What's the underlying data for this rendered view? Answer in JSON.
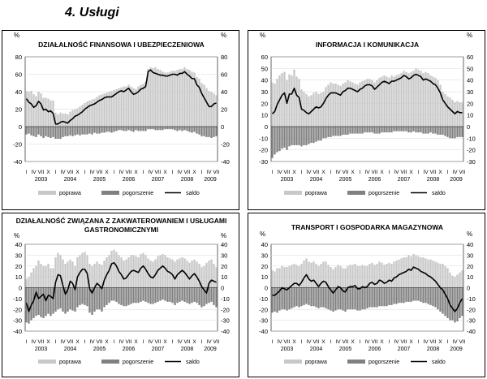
{
  "page": {
    "heading": "4.   Usługi"
  },
  "chart_data": [
    {
      "type": "bar+line",
      "title": "DZIAŁALNOŚĆ FINANSOWA I UBEZPIECZENIOWA",
      "unit": "%",
      "ylim": [
        -40,
        80
      ],
      "yticks": [
        -40,
        -20,
        0,
        20,
        40,
        60,
        80
      ],
      "months": [
        "I",
        "IV",
        "VII",
        "X"
      ],
      "years": [
        "2003",
        "2004",
        "2005",
        "2006",
        "2007",
        "2008",
        "2009"
      ],
      "legend": [
        "poprawa",
        "pogorszenie",
        "saldo"
      ],
      "colors": {
        "poprawa": "#c8c8c8",
        "pogorszenie": "#808080",
        "saldo": "#000000"
      },
      "series": [
        {
          "name": "poprawa",
          "values": [
            41,
            40,
            41,
            37,
            35,
            40,
            38,
            33,
            33,
            32,
            30,
            30,
            16,
            14,
            16,
            15,
            15,
            14,
            17,
            19,
            20,
            21,
            23,
            25,
            27,
            29,
            30,
            31,
            32,
            34,
            36,
            37,
            38,
            39,
            40,
            41,
            42,
            43,
            44,
            45,
            46,
            46,
            48,
            46,
            44,
            43,
            46,
            48,
            49,
            51,
            66,
            68,
            67,
            68,
            66,
            65,
            63,
            62,
            62,
            63,
            64,
            64,
            65,
            66,
            66,
            68,
            66,
            65,
            63,
            62,
            57,
            55,
            50,
            48,
            44,
            41,
            40,
            38,
            36
          ]
        },
        {
          "name": "pogorszenie",
          "values": [
            -9,
            -8,
            -10,
            -11,
            -12,
            -9,
            -11,
            -13,
            -11,
            -12,
            -13,
            -12,
            -14,
            -14,
            -14,
            -12,
            -11,
            -11,
            -10,
            -11,
            -10,
            -9,
            -10,
            -9,
            -9,
            -9,
            -8,
            -9,
            -7,
            -8,
            -8,
            -7,
            -7,
            -6,
            -6,
            -7,
            -6,
            -5,
            -4,
            -4,
            -5,
            -5,
            -4,
            -5,
            -6,
            -4,
            -5,
            -5,
            -5,
            -5,
            -3,
            -3,
            -3,
            -4,
            -4,
            -4,
            -4,
            -3,
            -3,
            -3,
            -3,
            -4,
            -5,
            -4,
            -5,
            -4,
            -5,
            -6,
            -7,
            -6,
            -8,
            -9,
            -11,
            -11,
            -12,
            -12,
            -13,
            -12,
            -11
          ]
        },
        {
          "name": "saldo",
          "values": [
            32,
            28,
            26,
            22,
            24,
            29,
            26,
            19,
            20,
            17,
            18,
            15,
            3,
            3,
            5,
            6,
            5,
            4,
            7,
            9,
            12,
            13,
            15,
            17,
            20,
            22,
            24,
            25,
            26,
            28,
            30,
            31,
            33,
            34,
            34,
            34,
            36,
            38,
            40,
            41,
            40,
            42,
            44,
            40,
            37,
            38,
            40,
            43,
            44,
            46,
            63,
            65,
            62,
            61,
            60,
            59,
            59,
            58,
            58,
            59,
            60,
            60,
            59,
            61,
            61,
            63,
            60,
            58,
            55,
            55,
            48,
            45,
            38,
            33,
            28,
            23,
            23,
            26,
            27
          ]
        }
      ]
    },
    {
      "type": "bar+line",
      "title": "INFORMACJA I KOMUNIKACJA",
      "unit": "%",
      "ylim": [
        -30,
        60
      ],
      "yticks": [
        -30,
        -20,
        -10,
        0,
        10,
        20,
        30,
        40,
        50,
        60
      ],
      "months": [
        "I",
        "IV",
        "VII",
        "X"
      ],
      "years": [
        "2003",
        "2004",
        "2005",
        "2006",
        "2007",
        "2008",
        "2009"
      ],
      "legend": [
        "poprawa",
        "pogorszenie",
        "saldo"
      ],
      "colors": {
        "poprawa": "#c8c8c8",
        "pogorszenie": "#808080",
        "saldo": "#000000"
      },
      "series": [
        {
          "name": "poprawa",
          "values": [
            38,
            37,
            41,
            44,
            46,
            47,
            40,
            45,
            44,
            49,
            43,
            41,
            32,
            30,
            28,
            26,
            27,
            29,
            30,
            28,
            29,
            30,
            34,
            36,
            38,
            37,
            37,
            36,
            35,
            37,
            38,
            40,
            39,
            38,
            37,
            36,
            38,
            39,
            40,
            41,
            41,
            40,
            38,
            40,
            42,
            43,
            44,
            43,
            42,
            44,
            43,
            44,
            45,
            46,
            48,
            47,
            46,
            47,
            48,
            50,
            49,
            48,
            46,
            47,
            46,
            44,
            43,
            42,
            40,
            36,
            30,
            28,
            26,
            25,
            23,
            21,
            22,
            21,
            21
          ]
        },
        {
          "name": "pogorszenie",
          "values": [
            -27,
            -24,
            -22,
            -21,
            -19,
            -18,
            -20,
            -17,
            -16,
            -16,
            -16,
            -16,
            -17,
            -16,
            -16,
            -15,
            -14,
            -14,
            -13,
            -12,
            -12,
            -10,
            -10,
            -9,
            -9,
            -8,
            -8,
            -8,
            -8,
            -7,
            -7,
            -7,
            -6,
            -6,
            -6,
            -6,
            -6,
            -6,
            -5,
            -5,
            -5,
            -5,
            -6,
            -6,
            -6,
            -5,
            -5,
            -5,
            -5,
            -5,
            -4,
            -4,
            -4,
            -4,
            -4,
            -4,
            -5,
            -5,
            -4,
            -5,
            -5,
            -5,
            -6,
            -6,
            -6,
            -5,
            -6,
            -6,
            -7,
            -7,
            -7,
            -8,
            -9,
            -10,
            -10,
            -10,
            -9,
            -9,
            -9
          ]
        },
        {
          "name": "saldo",
          "values": [
            11,
            13,
            19,
            23,
            27,
            29,
            20,
            28,
            28,
            33,
            27,
            25,
            15,
            14,
            12,
            11,
            13,
            15,
            17,
            16,
            17,
            20,
            24,
            27,
            29,
            29,
            29,
            28,
            27,
            30,
            31,
            33,
            33,
            32,
            31,
            30,
            32,
            33,
            35,
            36,
            36,
            35,
            32,
            34,
            36,
            38,
            39,
            38,
            37,
            39,
            39,
            40,
            41,
            42,
            44,
            43,
            41,
            42,
            44,
            45,
            44,
            43,
            40,
            41,
            40,
            39,
            37,
            36,
            33,
            29,
            23,
            20,
            17,
            15,
            13,
            11,
            13,
            12,
            12
          ]
        }
      ]
    },
    {
      "type": "bar+line",
      "title": "DZIAŁALNOŚĆ ZWIĄZANA Z ZAKWATEROWANIEM I USŁUGAMI GASTRONOMICZNYMI",
      "unit": "%",
      "ylim": [
        -40,
        40
      ],
      "yticks": [
        -40,
        -30,
        -20,
        -10,
        0,
        10,
        20,
        30,
        40
      ],
      "months": [
        "I",
        "IV",
        "VII",
        "X"
      ],
      "years": [
        "2003",
        "2004",
        "2005",
        "2006",
        "2007",
        "2008",
        "2009"
      ],
      "legend": [
        "poprawa",
        "pogorszenie",
        "saldo"
      ],
      "colors": {
        "poprawa": "#c8c8c8",
        "pogorszenie": "#808080",
        "saldo": "#000000"
      },
      "series": [
        {
          "name": "poprawa",
          "values": [
            8,
            10,
            14,
            18,
            20,
            25,
            22,
            20,
            20,
            22,
            18,
            18,
            28,
            32,
            30,
            26,
            22,
            24,
            26,
            24,
            20,
            28,
            30,
            32,
            33,
            30,
            22,
            20,
            22,
            24,
            22,
            21,
            25,
            28,
            30,
            34,
            35,
            33,
            30,
            28,
            25,
            26,
            28,
            30,
            30,
            29,
            28,
            31,
            32,
            30,
            27,
            25,
            24,
            26,
            29,
            30,
            31,
            30,
            28,
            27,
            26,
            24,
            26,
            27,
            28,
            27,
            25,
            23,
            25,
            26,
            24,
            22,
            19,
            20,
            23,
            25,
            26,
            22,
            19
          ]
        },
        {
          "name": "pogorszenie",
          "values": [
            -32,
            -33,
            -30,
            -28,
            -26,
            -25,
            -27,
            -28,
            -26,
            -24,
            -26,
            -24,
            -22,
            -20,
            -19,
            -22,
            -24,
            -22,
            -20,
            -21,
            -22,
            -18,
            -16,
            -15,
            -16,
            -17,
            -23,
            -25,
            -22,
            -20,
            -20,
            -22,
            -18,
            -16,
            -14,
            -12,
            -12,
            -13,
            -15,
            -16,
            -17,
            -17,
            -16,
            -15,
            -14,
            -14,
            -14,
            -13,
            -12,
            -13,
            -14,
            -15,
            -15,
            -14,
            -13,
            -12,
            -11,
            -12,
            -13,
            -13,
            -14,
            -16,
            -14,
            -13,
            -12,
            -13,
            -14,
            -15,
            -14,
            -13,
            -14,
            -16,
            -18,
            -17,
            -15,
            -14,
            -13,
            -16,
            -18
          ]
        },
        {
          "name": "saldo",
          "values": [
            -14,
            -22,
            -16,
            -12,
            -4,
            -10,
            -8,
            -6,
            -12,
            -7,
            -8,
            -10,
            5,
            12,
            11,
            2,
            -6,
            -2,
            6,
            4,
            -2,
            10,
            14,
            17,
            17,
            13,
            -1,
            -5,
            0,
            4,
            2,
            -1,
            7,
            12,
            16,
            22,
            23,
            20,
            15,
            12,
            8,
            9,
            12,
            15,
            16,
            15,
            14,
            18,
            20,
            17,
            13,
            10,
            9,
            12,
            16,
            18,
            20,
            18,
            15,
            14,
            12,
            8,
            12,
            14,
            16,
            14,
            11,
            8,
            11,
            13,
            10,
            6,
            1,
            -2,
            -5,
            4,
            7,
            6,
            5
          ]
        }
      ]
    },
    {
      "type": "bar+line",
      "title": "TRANSPORT  I  GOSPODARKA  MAGAZYNOWA",
      "unit": "%",
      "ylim": [
        -40,
        40
      ],
      "yticks": [
        -40,
        -30,
        -20,
        -10,
        0,
        10,
        20,
        30,
        40
      ],
      "months": [
        "I",
        "IV",
        "VII",
        "X"
      ],
      "years": [
        "2003",
        "2004",
        "2005",
        "2006",
        "2007",
        "2008",
        "2009"
      ],
      "legend": [
        "poprawa",
        "pogorszenie",
        "saldo"
      ],
      "colors": {
        "poprawa": "#c8c8c8",
        "pogorszenie": "#808080",
        "saldo": "#000000"
      },
      "series": [
        {
          "name": "poprawa",
          "values": [
            16,
            15,
            18,
            18,
            20,
            19,
            19,
            20,
            21,
            22,
            21,
            20,
            22,
            25,
            27,
            24,
            23,
            24,
            22,
            20,
            22,
            24,
            24,
            21,
            19,
            17,
            19,
            21,
            20,
            18,
            18,
            20,
            21,
            21,
            22,
            20,
            20,
            21,
            20,
            20,
            22,
            23,
            21,
            22,
            24,
            23,
            21,
            22,
            23,
            22,
            24,
            25,
            26,
            27,
            28,
            28,
            30,
            29,
            31,
            30,
            29,
            28,
            28,
            27,
            26,
            26,
            25,
            24,
            23,
            22,
            22,
            20,
            18,
            14,
            11,
            10,
            12,
            14,
            16
          ]
        },
        {
          "name": "pogorszenie",
          "values": [
            -23,
            -22,
            -23,
            -21,
            -20,
            -20,
            -21,
            -20,
            -19,
            -18,
            -17,
            -18,
            -17,
            -16,
            -15,
            -16,
            -17,
            -17,
            -18,
            -19,
            -18,
            -18,
            -19,
            -20,
            -21,
            -22,
            -21,
            -20,
            -20,
            -21,
            -22,
            -20,
            -20,
            -20,
            -20,
            -21,
            -21,
            -20,
            -20,
            -19,
            -18,
            -18,
            -18,
            -18,
            -17,
            -17,
            -17,
            -17,
            -16,
            -16,
            -15,
            -15,
            -14,
            -14,
            -14,
            -13,
            -13,
            -13,
            -12,
            -12,
            -12,
            -13,
            -14,
            -14,
            -15,
            -16,
            -17,
            -18,
            -20,
            -22,
            -24,
            -26,
            -28,
            -30,
            -30,
            -32,
            -31,
            -28,
            -26
          ]
        },
        {
          "name": "saldo",
          "values": [
            -7,
            -7,
            -5,
            -3,
            0,
            -1,
            -2,
            0,
            2,
            4,
            4,
            2,
            5,
            9,
            12,
            8,
            6,
            7,
            4,
            1,
            4,
            6,
            5,
            1,
            -2,
            -5,
            -2,
            1,
            0,
            -3,
            -4,
            0,
            1,
            1,
            2,
            -1,
            -1,
            1,
            0,
            1,
            4,
            5,
            3,
            4,
            7,
            6,
            4,
            5,
            7,
            6,
            9,
            10,
            12,
            13,
            14,
            15,
            17,
            16,
            19,
            18,
            17,
            15,
            14,
            13,
            11,
            10,
            8,
            6,
            3,
            0,
            -2,
            -6,
            -10,
            -16,
            -19,
            -22,
            -19,
            -14,
            -10
          ]
        }
      ]
    }
  ]
}
